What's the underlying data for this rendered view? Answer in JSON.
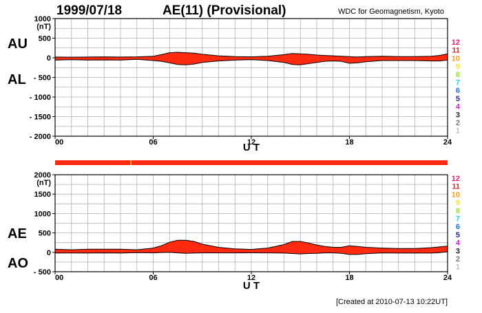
{
  "header": {
    "date": "1999/07/18",
    "title": "AE(11) (Provisional)",
    "source": "WDC for Geomagnetism, Kyoto"
  },
  "footer": {
    "created": "[Created at 2010-07-13 10:22UT]"
  },
  "station_legend": {
    "items": [
      {
        "label": "12",
        "color": "#e8196e"
      },
      {
        "label": "11",
        "color": "#e8262a"
      },
      {
        "label": "10",
        "color": "#f49c16"
      },
      {
        "label": "9",
        "color": "#f2e22a"
      },
      {
        "label": "8",
        "color": "#9ce12a"
      },
      {
        "label": "7",
        "color": "#27c7e5"
      },
      {
        "label": "6",
        "color": "#1f72e0"
      },
      {
        "label": "5",
        "color": "#25229f"
      },
      {
        "label": "4",
        "color": "#c21fd1"
      },
      {
        "label": "3",
        "color": "#222222"
      },
      {
        "label": "2",
        "color": "#777777"
      },
      {
        "label": "1",
        "color": "#bdbdbd"
      }
    ]
  },
  "colors": {
    "fill": "#ff2a0f",
    "line": "#000000",
    "grid": "#b0b0b0",
    "coverage": "#ff2a0f",
    "coverage_gap": "#f49c16"
  },
  "chart_data": [
    {
      "type": "area",
      "name": "AU/AL",
      "labels_left": [
        "AU",
        "AL"
      ],
      "ylabel": "(nT)",
      "ylim": [
        -2000,
        1000
      ],
      "yticks": [
        1000,
        500,
        0,
        -500,
        -1000,
        -1500,
        -2000
      ],
      "ytick_labels": [
        "1000",
        "500",
        "0",
        "- 500",
        "- 1000",
        "- 1500",
        "- 2000"
      ],
      "xlim": [
        0,
        24
      ],
      "xticks": [
        0,
        6,
        12,
        18,
        24
      ],
      "xtick_labels": [
        "00",
        "06",
        "12",
        "18",
        "24"
      ],
      "xlabel": "U T",
      "grid": true,
      "x": [
        0,
        1,
        2,
        3,
        4,
        5,
        6,
        6.5,
        7,
        7.5,
        8,
        8.5,
        9,
        10,
        11,
        12,
        13,
        14,
        14.5,
        15,
        15.5,
        16,
        16.5,
        17,
        17.5,
        18,
        18.5,
        19,
        20,
        21,
        22,
        23,
        23.5,
        24
      ],
      "series": [
        {
          "name": "AU",
          "values": [
            20,
            15,
            20,
            25,
            20,
            25,
            40,
            80,
            130,
            140,
            130,
            120,
            90,
            50,
            30,
            25,
            40,
            80,
            110,
            100,
            90,
            70,
            60,
            50,
            40,
            30,
            20,
            30,
            40,
            30,
            30,
            40,
            60,
            100
          ]
        },
        {
          "name": "AL",
          "values": [
            -60,
            -50,
            -60,
            -55,
            -60,
            -40,
            -70,
            -90,
            -130,
            -170,
            -180,
            -160,
            -120,
            -80,
            -60,
            -50,
            -70,
            -120,
            -170,
            -180,
            -150,
            -120,
            -90,
            -80,
            -90,
            -140,
            -130,
            -100,
            -70,
            -70,
            -70,
            -80,
            -80,
            -60
          ]
        }
      ]
    },
    {
      "type": "area",
      "name": "AE/AO",
      "labels_left": [
        "AE",
        "AO"
      ],
      "ylabel": "(nT)",
      "ylim": [
        -500,
        2000
      ],
      "yticks": [
        2000,
        1500,
        1000,
        500,
        0,
        -500
      ],
      "ytick_labels": [
        "2000",
        "1500",
        "1000",
        "500",
        "0",
        "- 500"
      ],
      "xlim": [
        0,
        24
      ],
      "xticks": [
        0,
        6,
        12,
        18,
        24
      ],
      "xtick_labels": [
        "00",
        "06",
        "12",
        "18",
        "24"
      ],
      "xlabel": "U T",
      "grid": true,
      "x": [
        0,
        1,
        2,
        3,
        4,
        5,
        6,
        6.5,
        7,
        7.5,
        8,
        8.5,
        9,
        10,
        11,
        12,
        13,
        14,
        14.5,
        15,
        15.5,
        16,
        16.5,
        17,
        17.5,
        18,
        18.5,
        19,
        20,
        21,
        22,
        23,
        23.5,
        24
      ],
      "series": [
        {
          "name": "AE",
          "values": [
            80,
            65,
            80,
            80,
            80,
            65,
            110,
            170,
            260,
            310,
            310,
            280,
            210,
            130,
            90,
            75,
            110,
            200,
            280,
            280,
            240,
            190,
            150,
            130,
            130,
            170,
            150,
            130,
            110,
            100,
            100,
            120,
            140,
            160
          ]
        },
        {
          "name": "AO",
          "values": [
            -20,
            -18,
            -20,
            -15,
            -20,
            -8,
            -15,
            -5,
            0,
            -15,
            -25,
            -20,
            -15,
            -15,
            -15,
            -12,
            -15,
            -20,
            -30,
            -40,
            -30,
            -25,
            -15,
            -15,
            -25,
            -55,
            -55,
            -35,
            -15,
            -20,
            -20,
            -20,
            -10,
            20
          ]
        }
      ]
    }
  ]
}
